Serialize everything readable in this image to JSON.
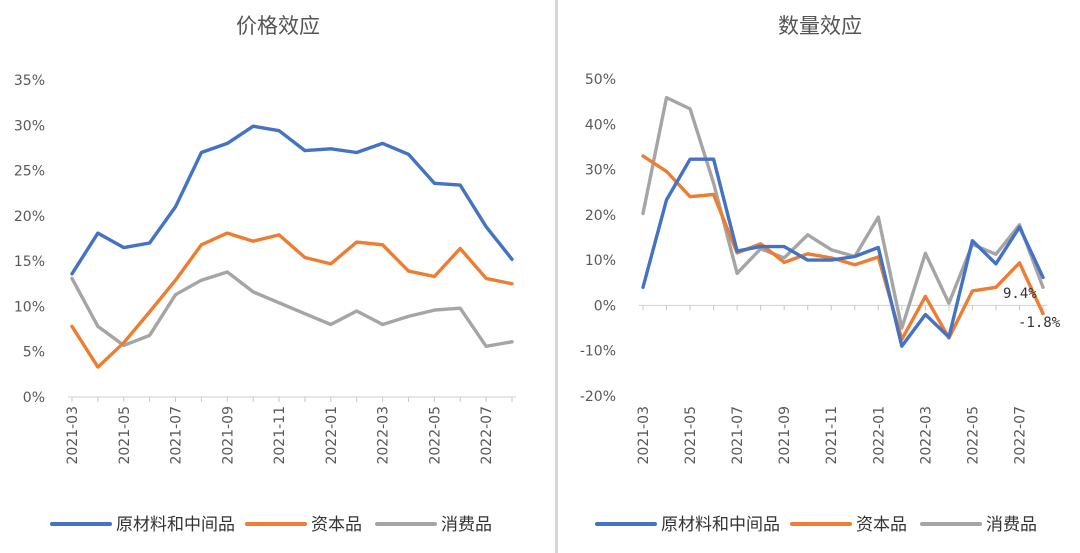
{
  "chart_data": [
    {
      "type": "line",
      "title": "价格效应",
      "categories": [
        "2021-03",
        "2021-04",
        "2021-05",
        "2021-06",
        "2021-07",
        "2021-08",
        "2021-09",
        "2021-10",
        "2021-11",
        "2021-12",
        "2022-01",
        "2022-02",
        "2022-03",
        "2022-04",
        "2022-05",
        "2022-06",
        "2022-07",
        "2022-08"
      ],
      "tick_labels": [
        "2021-03",
        "2021-05",
        "2021-07",
        "2021-09",
        "2021-11",
        "2022-01",
        "2022-03",
        "2022-05",
        "2022-07"
      ],
      "y_ticks": [
        "35%",
        "30%",
        "25%",
        "20%",
        "15%",
        "10%",
        "5%",
        "0%"
      ],
      "ylim": [
        0,
        35
      ],
      "series": [
        {
          "name": "原材料和中间品",
          "color": "#4472c4",
          "values": [
            13.6,
            18.1,
            16.5,
            17.0,
            21.0,
            27.0,
            28.0,
            29.9,
            29.4,
            27.2,
            27.4,
            27.0,
            28.0,
            26.8,
            23.6,
            23.4,
            18.8,
            15.2
          ]
        },
        {
          "name": "资本品",
          "color": "#ed7d31",
          "values": [
            7.8,
            3.3,
            6.0,
            9.4,
            12.9,
            16.8,
            18.1,
            17.2,
            17.9,
            15.4,
            14.7,
            17.1,
            16.8,
            13.9,
            13.3,
            16.4,
            13.1,
            12.5
          ]
        },
        {
          "name": "消费品",
          "color": "#a5a5a5",
          "values": [
            13.1,
            7.8,
            5.7,
            6.8,
            11.3,
            12.9,
            13.8,
            11.6,
            10.4,
            9.2,
            8.0,
            9.5,
            8.0,
            8.9,
            9.6,
            9.8,
            5.6,
            6.1
          ]
        }
      ]
    },
    {
      "type": "line",
      "title": "数量效应",
      "categories": [
        "2021-03",
        "2021-04",
        "2021-05",
        "2021-06",
        "2021-07",
        "2021-08",
        "2021-09",
        "2021-10",
        "2021-11",
        "2021-12",
        "2022-01",
        "2022-02",
        "2022-03",
        "2022-04",
        "2022-05",
        "2022-06",
        "2022-07",
        "2022-08"
      ],
      "tick_labels": [
        "2021-03",
        "2021-05",
        "2021-07",
        "2021-09",
        "2021-11",
        "2022-01",
        "2022-03",
        "2022-05",
        "2022-07"
      ],
      "y_ticks": [
        "50%",
        "40%",
        "30%",
        "20%",
        "10%",
        "0%",
        "-10%",
        "-20%"
      ],
      "ylim": [
        -20,
        50
      ],
      "annotations": [
        "9.4%",
        "-1.8%"
      ],
      "series": [
        {
          "name": "原材料和中间品",
          "color": "#4472c4",
          "values": [
            4.0,
            23.3,
            32.3,
            32.3,
            12.0,
            13.0,
            13.0,
            10.0,
            10.0,
            10.8,
            12.8,
            -9.0,
            -2.0,
            -7.0,
            14.3,
            9.2,
            17.3,
            6.2
          ]
        },
        {
          "name": "资本品",
          "color": "#ed7d31",
          "values": [
            33.0,
            29.6,
            24.0,
            24.5,
            11.6,
            13.6,
            9.5,
            11.4,
            10.5,
            9.0,
            10.7,
            -7.5,
            2.0,
            -7.2,
            3.2,
            4.0,
            9.4,
            -1.8
          ]
        },
        {
          "name": "消费品",
          "color": "#a5a5a5",
          "values": [
            20.3,
            45.9,
            43.4,
            27.0,
            7.1,
            12.5,
            10.5,
            15.6,
            12.3,
            10.8,
            19.5,
            -5.0,
            11.5,
            0.5,
            13.5,
            11.3,
            17.8,
            4.0
          ]
        }
      ]
    }
  ]
}
